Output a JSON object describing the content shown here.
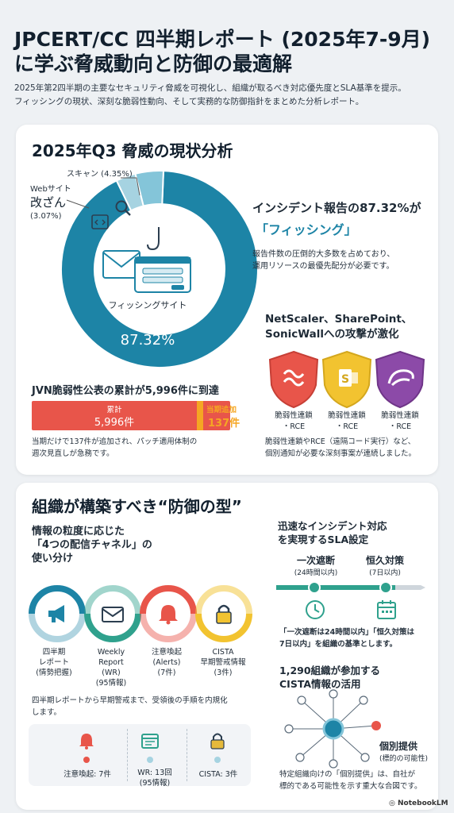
{
  "header": {
    "title_line1": "JPCERT/CC 四半期レポート (2025年7-9月)",
    "title_line2": "に学ぶ脅威動向と防御の最適解",
    "desc_line1": "2025年第2四半期の主要なセキュリティ脅威を可視化し、組織が取るべき対応優先度とSLA基準を提示。",
    "desc_line2": "フィッシングの現状、深刻な脆弱性動向、そして実務的な防御指針をまとめた分析レポート。"
  },
  "section1": {
    "title": "2025年Q3 脅威の現状分析",
    "donut": {
      "scan_label": "スキャン (4.35%)",
      "web_label_1": "Webサイト",
      "web_label_2": "改ざん",
      "web_label_3": "(3.07%)",
      "center_label": "フィッシングサイト",
      "center_value": "87.32%"
    },
    "phishing": {
      "headline_1": "インシデント報告の87.32%が",
      "headline_2": "「フィッシング」",
      "body_1": "報告件数の圧倒的大多数を占めており、",
      "body_2": "運用リソースの最優先配分が必要です。"
    },
    "jvn": {
      "title": "JVN脆弱性公表の累計が5,996件に到達",
      "bar_label": "累計",
      "bar_value": "5,996件",
      "add_label": "当期追加",
      "add_value": "137件",
      "note_1": "当期だけで137件が追加され、パッチ適用体制の",
      "note_2": "週次見直しが急務です。"
    },
    "attacks": {
      "title_1": "NetScaler、SharePoint、",
      "title_2": "SonicWallへの攻撃が激化",
      "shield_labels": [
        {
          "l1": "脆弱性連鎖",
          "l2": "・RCE"
        },
        {
          "l1": "脆弱性連鎖",
          "l2": "・RCE"
        },
        {
          "l1": "脆弱性連鎖",
          "l2": "・RCE"
        }
      ],
      "note_1": "脆弱性連鎖やRCE（遠隔コード実行）など、",
      "note_2": "個別通知が必要な深刻事案が連続しました。"
    }
  },
  "section2": {
    "title": "組織が構築すべき“防御の型”",
    "channels": {
      "title_1": "情報の粒度に応じた",
      "title_2": "「4つの配信チャネル」の",
      "title_3": "使い分け",
      "items": [
        {
          "l1": "四半期",
          "l2": "レポート",
          "l3": "(情勢把握)",
          "l4": ""
        },
        {
          "l1": "Weekly",
          "l2": "Report",
          "l3": "(WR)",
          "l4": "(95情報)"
        },
        {
          "l1": "注意喚起",
          "l2": "(Alerts)",
          "l3": "(7件)",
          "l4": ""
        },
        {
          "l1": "CISTA",
          "l2": "早期警戒情報",
          "l3": "(3件)",
          "l4": ""
        }
      ],
      "note_1": "四半期レポートから早期警戒まで、受領後の手順を内規化",
      "note_2": "します。",
      "stats": [
        {
          "label": "注意喚起: 7件",
          "label2": ""
        },
        {
          "label": "WR: 13回",
          "label2": "(95情報)"
        },
        {
          "label": "CISTA: 3件",
          "label2": ""
        }
      ]
    },
    "sla": {
      "title_1": "迅速なインシデント対応",
      "title_2": "を実現するSLA設定",
      "first_label": "一次遮断",
      "first_sub": "(24時間以内)",
      "perm_label": "恒久対策",
      "perm_sub": "(7日以内)",
      "note_1": "「一次遮断は24時間以内」「恒久対策は",
      "note_2": "7日以内」を組織の基準とします。"
    },
    "cista": {
      "title_1": "1,290組織が参加する",
      "title_2": "CISTA情報の活用",
      "callout_1": "個別提供",
      "callout_2": "(標的の可能性)",
      "note_1": "特定組織向けの「個別提供」は、自社が",
      "note_2": "標的である可能性を示す重大な合図です。"
    }
  },
  "footer": {
    "brand": "NotebookLM"
  },
  "chart_data": {
    "type": "pie",
    "categories": [
      "フィッシングサイト",
      "Webサイト改ざん",
      "スキャン"
    ],
    "values": [
      87.32,
      3.07,
      4.35
    ],
    "title": ""
  },
  "colors": {
    "phishing": "#1d84a6",
    "scan": "#84c5d9",
    "defacement": "#a6d3e1",
    "red": "#e8554a",
    "orange": "#f5a623",
    "yellow": "#f2c330",
    "purple": "#8c4aa8",
    "green": "#2fa18d"
  }
}
